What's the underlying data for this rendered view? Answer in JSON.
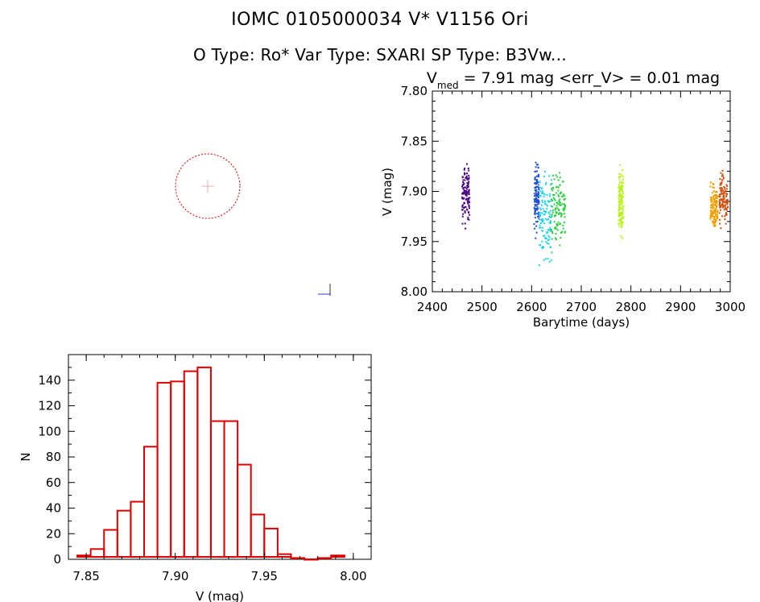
{
  "header": {
    "title": "IOMC 0105000034    V* V1156 Ori",
    "subtitle": "O Type: Ro*  Var Type: SXARI  SP Type: B3Vw..."
  },
  "image_panel": {
    "overlay_labels": {
      "top_left": "",
      "center_top": "",
      "bottom_left": "",
      "bottom_center": ""
    },
    "colors": {
      "circle": "#cc0000",
      "text_blue": "#0000cc"
    }
  },
  "chart_data": [
    {
      "type": "scatter",
      "title_prefix": "V",
      "title_subscript": "med",
      "title_suffix": " = 7.91 mag <err_V> = 0.01 mag",
      "xlabel": "Barytime (days)",
      "ylabel": "V (mag)",
      "xlim": [
        2400,
        3000
      ],
      "ylim": [
        8.0,
        7.8
      ],
      "y_inverted": true,
      "xticks": [
        "2400",
        "2500",
        "2600",
        "2700",
        "2800",
        "2900",
        "3000"
      ],
      "yticks": [
        "7.80",
        "7.85",
        "7.90",
        "7.95",
        "8.00"
      ],
      "grid": false,
      "series": [
        {
          "x_range": [
            2460,
            2475
          ],
          "y_range": [
            7.865,
            7.955
          ],
          "y_center": 7.905,
          "color": "#4b0082"
        },
        {
          "x_range": [
            2605,
            2615
          ],
          "y_range": [
            7.845,
            7.955
          ],
          "y_center": 7.905,
          "color": "#1f4fd6"
        },
        {
          "x_range": [
            2615,
            2640
          ],
          "y_range": [
            7.87,
            7.995
          ],
          "y_center": 7.925,
          "color": "#22d3e6"
        },
        {
          "x_range": [
            2640,
            2668
          ],
          "y_range": [
            7.855,
            7.965
          ],
          "y_center": 7.915,
          "color": "#2ecc40"
        },
        {
          "x_range": [
            2775,
            2785
          ],
          "y_range": [
            7.86,
            7.96
          ],
          "y_center": 7.91,
          "color": "#b6f214"
        },
        {
          "x_range": [
            2960,
            2975
          ],
          "y_range": [
            7.885,
            7.95
          ],
          "y_center": 7.915,
          "color": "#f0a000"
        },
        {
          "x_range": [
            2978,
            2995
          ],
          "y_range": [
            7.855,
            7.935
          ],
          "y_center": 7.905,
          "color": "#d4500e"
        }
      ]
    },
    {
      "type": "bar",
      "subtype": "histogram",
      "xlabel": "V (mag)",
      "ylabel": "N",
      "xlim": [
        7.84,
        8.01
      ],
      "ylim": [
        0,
        160
      ],
      "xticks": [
        "7.85",
        "7.90",
        "7.95",
        "8.00"
      ],
      "yticks": [
        "0",
        "20",
        "40",
        "60",
        "80",
        "100",
        "120",
        "140"
      ],
      "bin_width": 0.0075,
      "bin_left_edges": [
        7.845,
        7.8525,
        7.86,
        7.8675,
        7.875,
        7.8825,
        7.89,
        7.8975,
        7.905,
        7.9125,
        7.92,
        7.9275,
        7.935,
        7.9425,
        7.95,
        7.9575,
        7.965,
        7.9725,
        7.98,
        7.9875
      ],
      "values": [
        3,
        8,
        23,
        38,
        45,
        88,
        138,
        139,
        147,
        150,
        108,
        108,
        74,
        35,
        24,
        4,
        1,
        0,
        1,
        3
      ],
      "color": "#dd0000"
    }
  ]
}
